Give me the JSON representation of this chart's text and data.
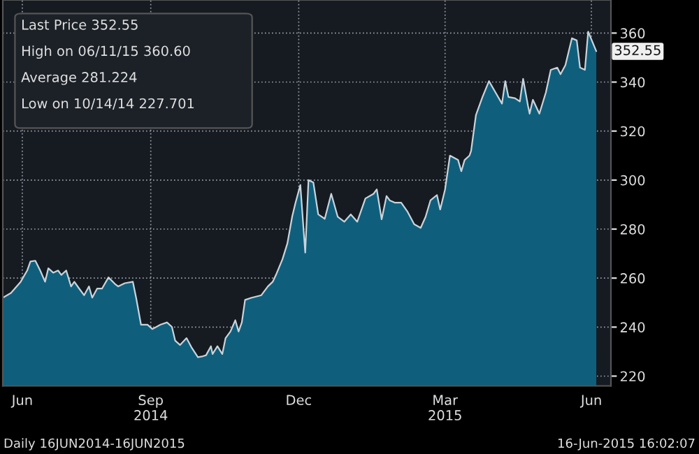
{
  "chart_data": {
    "type": "area",
    "x": [
      "2014-06-16",
      "2014-06-21",
      "2014-06-27",
      "2014-07-01",
      "2014-07-03",
      "2014-07-06",
      "2014-07-09",
      "2014-07-12",
      "2014-07-14",
      "2014-07-17",
      "2014-07-20",
      "2014-07-22",
      "2014-07-25",
      "2014-07-28",
      "2014-07-30",
      "2014-08-02",
      "2014-08-05",
      "2014-08-08",
      "2014-08-10",
      "2014-08-13",
      "2014-08-16",
      "2014-08-20",
      "2014-08-24",
      "2014-08-26",
      "2014-08-30",
      "2014-09-04",
      "2014-09-06",
      "2014-09-09",
      "2014-09-13",
      "2014-09-16",
      "2014-09-21",
      "2014-09-25",
      "2014-09-28",
      "2014-09-30",
      "2014-10-03",
      "2014-10-07",
      "2014-10-10",
      "2014-10-14",
      "2014-10-17",
      "2014-10-19",
      "2014-10-22",
      "2014-10-23",
      "2014-10-26",
      "2014-10-29",
      "2014-10-31",
      "2014-11-03",
      "2014-11-06",
      "2014-11-08",
      "2014-11-10",
      "2014-11-12",
      "2014-11-16",
      "2014-11-22",
      "2014-11-26",
      "2014-11-29",
      "2014-12-01",
      "2014-12-05",
      "2014-12-08",
      "2014-12-11",
      "2014-12-13",
      "2014-12-16",
      "2014-12-19",
      "2014-12-21",
      "2014-12-24",
      "2014-12-27",
      "2014-12-31",
      "2015-01-04",
      "2015-01-08",
      "2015-01-12",
      "2015-01-16",
      "2015-01-20",
      "2015-01-25",
      "2015-01-30",
      "2015-02-01",
      "2015-02-04",
      "2015-02-07",
      "2015-02-09",
      "2015-02-12",
      "2015-02-16",
      "2015-02-20",
      "2015-02-24",
      "2015-02-28",
      "2015-03-03",
      "2015-03-06",
      "2015-03-10",
      "2015-03-12",
      "2015-03-15",
      "2015-03-18",
      "2015-03-23",
      "2015-03-25",
      "2015-03-27",
      "2015-03-30",
      "2015-03-31",
      "2015-04-03",
      "2015-04-07",
      "2015-04-11",
      "2015-04-15",
      "2015-04-19",
      "2015-04-21",
      "2015-04-23",
      "2015-04-27",
      "2015-04-30",
      "2015-05-02",
      "2015-05-05",
      "2015-05-06",
      "2015-05-08",
      "2015-05-12",
      "2015-05-16",
      "2015-05-19",
      "2015-05-23",
      "2015-05-25",
      "2015-05-28",
      "2015-06-01",
      "2015-06-04",
      "2015-06-06",
      "2015-06-09",
      "2015-06-11",
      "2015-06-16"
    ],
    "series": [
      {
        "color": "#0f5f7c",
        "values": [
          252.0,
          253.9,
          258.5,
          263.1,
          266.8,
          267.1,
          263.1,
          258.5,
          264.0,
          262.2,
          263.1,
          261.3,
          263.1,
          256.6,
          258.5,
          255.7,
          253.0,
          256.6,
          252.0,
          255.7,
          255.7,
          260.3,
          257.6,
          256.6,
          257.9,
          258.5,
          252.0,
          241.0,
          241.0,
          239.2,
          241.0,
          241.9,
          240.1,
          234.5,
          232.7,
          235.5,
          231.8,
          227.7,
          228.1,
          228.5,
          232.2,
          229.0,
          232.2,
          229.0,
          235.5,
          238.2,
          242.8,
          238.2,
          241.9,
          251.1,
          252.0,
          253.0,
          256.6,
          258.5,
          261.3,
          267.7,
          274.1,
          285.2,
          290.7,
          298.0,
          270.4,
          300.0,
          299.0,
          286.0,
          284.2,
          294.4,
          285.0,
          283.0,
          286.0,
          283.0,
          292.5,
          294.4,
          296.2,
          284.0,
          293.5,
          291.7,
          290.8,
          290.8,
          287.0,
          282.0,
          280.5,
          285.0,
          291.7,
          293.9,
          288.0,
          296.2,
          310.0,
          308.2,
          303.6,
          308.2,
          310.0,
          311.9,
          326.6,
          333.9,
          340.4,
          335.8,
          331.2,
          340.4,
          333.9,
          333.4,
          332.1,
          341.3,
          330.3,
          327.1,
          332.8,
          327.1,
          335.8,
          345.0,
          345.9,
          343.2,
          346.9,
          357.9,
          357.0,
          345.9,
          345.0,
          360.6,
          352.6
        ]
      }
    ],
    "xlim": [
      "2014-06-16",
      "2015-06-25"
    ],
    "xticks": [
      {
        "value": "2014-06-28",
        "label": "Jun"
      },
      {
        "value": "2014-09-15",
        "label": "Sep\n2014"
      },
      {
        "value": "2014-12-15",
        "label": "Dec"
      },
      {
        "value": "2015-03-15",
        "label": "Mar\n2015"
      },
      {
        "value": "2015-06-13",
        "label": "Jun"
      }
    ],
    "ylim": [
      216,
      373.5
    ],
    "yticks": [
      220,
      240,
      260,
      280,
      300,
      320,
      340,
      360
    ],
    "grid": true,
    "annotations": [
      "Last Price 352.55",
      "High on 06/11/15 360.60",
      "Average 281.224",
      "Low on 10/14/14 227.701",
      {
        "text": "352.55",
        "x": "2015-06-16",
        "y": 352.55
      },
      "Daily 16JUN2014-16JUN2015",
      "16-Jun-2015 16:02:07"
    ]
  }
}
